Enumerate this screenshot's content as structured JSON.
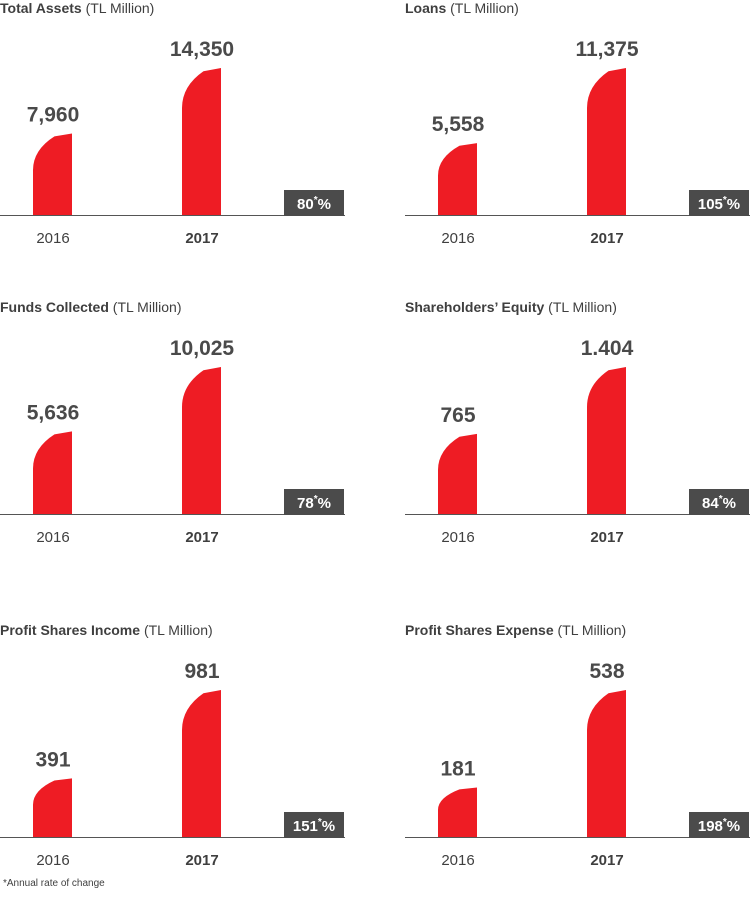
{
  "colors": {
    "bar": "#ee1c24",
    "badge": "#4b4b4b",
    "axis": "#555555"
  },
  "chart_data": [
    {
      "type": "bar",
      "title": "Total Assets",
      "unit": "(TL Million)",
      "categories": [
        "2016",
        "2017"
      ],
      "values": [
        7960,
        14350
      ],
      "value_labels": [
        "7,960",
        "14,350"
      ],
      "change_label": "80",
      "change_suffix": "%",
      "change_mark": "*"
    },
    {
      "type": "bar",
      "title": "Loans",
      "unit": "(TL Million)",
      "categories": [
        "2016",
        "2017"
      ],
      "values": [
        5558,
        11375
      ],
      "value_labels": [
        "5,558",
        "11,375"
      ],
      "change_label": "105",
      "change_suffix": "%",
      "change_mark": "*"
    },
    {
      "type": "bar",
      "title": "Funds Collected",
      "unit": "(TL Million)",
      "categories": [
        "2016",
        "2017"
      ],
      "values": [
        5636,
        10025
      ],
      "value_labels": [
        "5,636",
        "10,025"
      ],
      "change_label": "78",
      "change_suffix": "%",
      "change_mark": "*"
    },
    {
      "type": "bar",
      "title": "Shareholders’ Equity",
      "unit": "(TL Million)",
      "categories": [
        "2016",
        "2017"
      ],
      "values": [
        765,
        1404
      ],
      "value_labels": [
        "765",
        "1.404"
      ],
      "change_label": "84",
      "change_suffix": "%",
      "change_mark": "*"
    },
    {
      "type": "bar",
      "title": "Profit Shares Income",
      "unit": "(TL Million)",
      "categories": [
        "2016",
        "2017"
      ],
      "values": [
        391,
        981
      ],
      "value_labels": [
        "391",
        "981"
      ],
      "change_label": "151",
      "change_suffix": "%",
      "change_mark": "*"
    },
    {
      "type": "bar",
      "title": "Profit Shares Expense",
      "unit": "(TL Million)",
      "categories": [
        "2016",
        "2017"
      ],
      "values": [
        181,
        538
      ],
      "value_labels": [
        "181",
        "538"
      ],
      "change_label": "198",
      "change_suffix": "%",
      "change_mark": "*"
    }
  ],
  "footnote": "*Annual rate of change"
}
